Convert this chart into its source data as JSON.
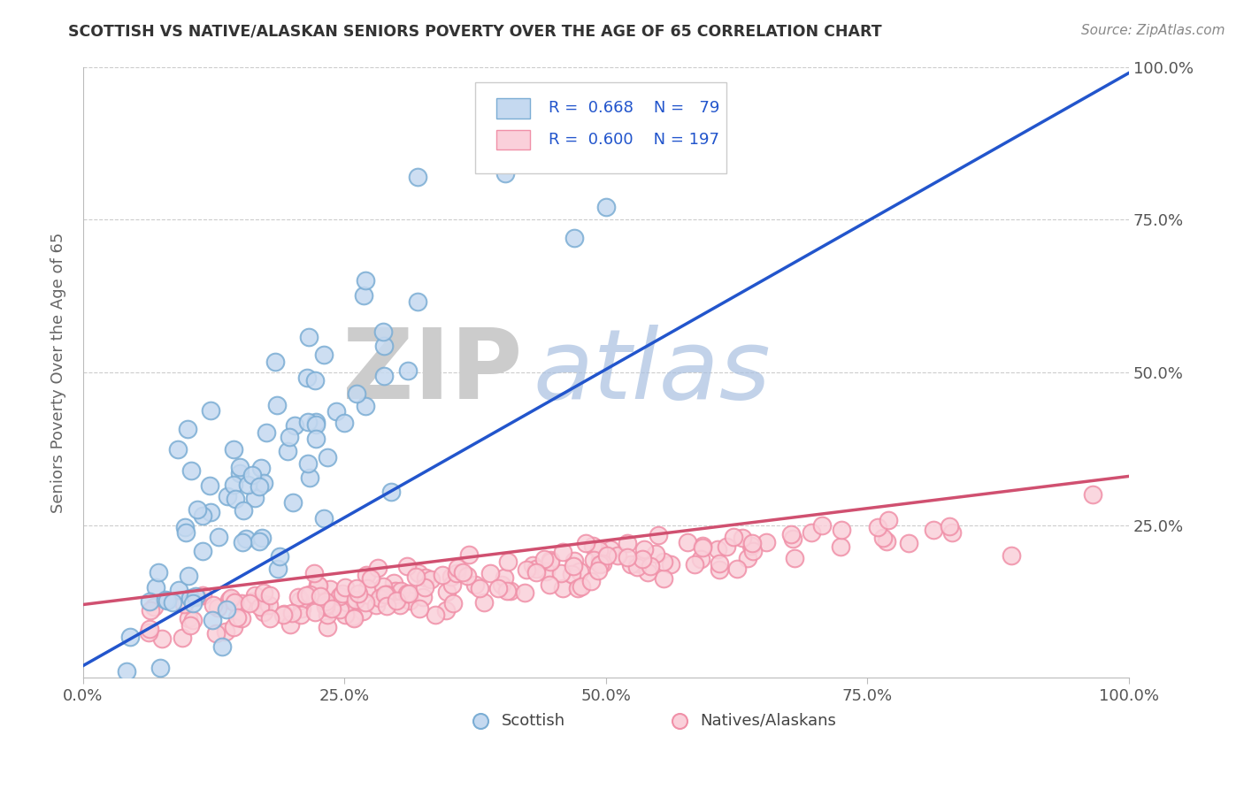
{
  "title": "SCOTTISH VS NATIVE/ALASKAN SENIORS POVERTY OVER THE AGE OF 65 CORRELATION CHART",
  "source": "Source: ZipAtlas.com",
  "ylabel": "Seniors Poverty Over the Age of 65",
  "r_scottish": 0.668,
  "n_scottish": 79,
  "r_native": 0.6,
  "n_native": 197,
  "blue_edge_color": "#7badd4",
  "pink_edge_color": "#f090a8",
  "blue_line_color": "#2255cc",
  "pink_line_color": "#d05070",
  "blue_fill_color": "#c5d9f0",
  "pink_fill_color": "#fad0da",
  "legend_blue_label": "Scottish",
  "legend_pink_label": "Natives/Alaskans",
  "watermark_zip": "ZIP",
  "watermark_atlas": "atlas",
  "watermark_zip_color": "#cccccc",
  "watermark_atlas_color": "#a8c0e0",
  "background_color": "#ffffff",
  "grid_color": "#cccccc",
  "title_color": "#333333",
  "source_color": "#888888",
  "axis_label_color": "#666666",
  "stat_color": "#2255cc",
  "label_color": "#333333",
  "seed_scottish": 7,
  "seed_native": 42
}
